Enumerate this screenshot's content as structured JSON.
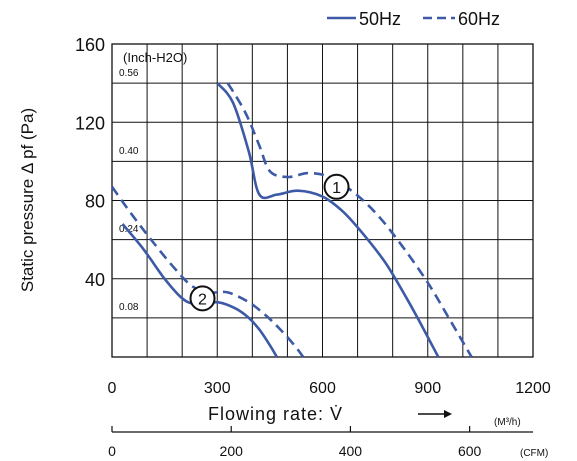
{
  "chart_data": {
    "type": "line",
    "title": "",
    "legend": {
      "position": "top-right",
      "entries": [
        {
          "label": "50Hz",
          "style": "solid"
        },
        {
          "label": "60Hz",
          "style": "dashed"
        }
      ]
    },
    "ylabel": "Static pressure Δ pf (Pa)",
    "xlabel": "Flowing rate: V̇",
    "x_unit": "(M³/h)",
    "cfm_unit": "(CFM)",
    "inch_unit": "(Inch-H2O)",
    "xlim": [
      0,
      1200
    ],
    "ylim": [
      0,
      160
    ],
    "x_ticks": [
      {
        "value": 0,
        "label": "0"
      },
      {
        "value": 300,
        "label": "300"
      },
      {
        "value": 600,
        "label": "600"
      },
      {
        "value": 900,
        "label": "900"
      },
      {
        "value": 1200,
        "label": "1200"
      }
    ],
    "y_ticks": [
      {
        "value": 40,
        "label": "40"
      },
      {
        "value": 80,
        "label": "80"
      },
      {
        "value": 120,
        "label": "120"
      },
      {
        "value": 160,
        "label": "160"
      }
    ],
    "cfm_ticks": [
      {
        "value": 0,
        "label": "0"
      },
      {
        "value": 200,
        "label": "200"
      },
      {
        "value": 400,
        "label": "400"
      },
      {
        "value": 600,
        "label": "600"
      }
    ],
    "inch_ticks": [
      {
        "value": 0.08,
        "label": "0.08"
      },
      {
        "value": 0.24,
        "label": "0.24"
      },
      {
        "value": 0.4,
        "label": "0.40"
      },
      {
        "value": 0.56,
        "label": "0.56"
      }
    ],
    "grid": true,
    "series": [
      {
        "name": "50Hz",
        "curve": "1",
        "style": "solid",
        "color": "#3c5aa6",
        "x": [
          300,
          345,
          390,
          420,
          470,
          530,
          600,
          660,
          720,
          780,
          840,
          880,
          930
        ],
        "y": [
          140,
          130,
          105,
          83,
          83,
          85,
          82,
          74,
          62,
          48,
          30,
          17,
          0
        ]
      },
      {
        "name": "60Hz",
        "curve": "1",
        "style": "dashed",
        "color": "#3c5aa6",
        "x": [
          330,
          380,
          420,
          450,
          500,
          560,
          620,
          690,
          760,
          830,
          900,
          960,
          1025
        ],
        "y": [
          140,
          125,
          108,
          95,
          92,
          94,
          92,
          84,
          72,
          56,
          38,
          20,
          0
        ]
      },
      {
        "name": "50Hz",
        "curve": "2",
        "style": "solid",
        "color": "#3c5aa6",
        "x": [
          30,
          90,
          150,
          200,
          240,
          300,
          350,
          390,
          420,
          450,
          470
        ],
        "y": [
          68,
          55,
          40,
          30,
          27,
          28,
          25,
          20,
          14,
          6,
          0
        ]
      },
      {
        "name": "60Hz",
        "curve": "2",
        "style": "dashed",
        "color": "#3c5aa6",
        "x": [
          0,
          60,
          120,
          180,
          230,
          280,
          330,
          390,
          440,
          480,
          520,
          545
        ],
        "y": [
          87,
          72,
          58,
          45,
          36,
          33,
          33,
          28,
          21,
          14,
          6,
          0
        ]
      }
    ],
    "annotations": [
      {
        "label": "1",
        "x": 640,
        "y": 87
      },
      {
        "label": "2",
        "x": 258,
        "y": 30
      }
    ]
  }
}
